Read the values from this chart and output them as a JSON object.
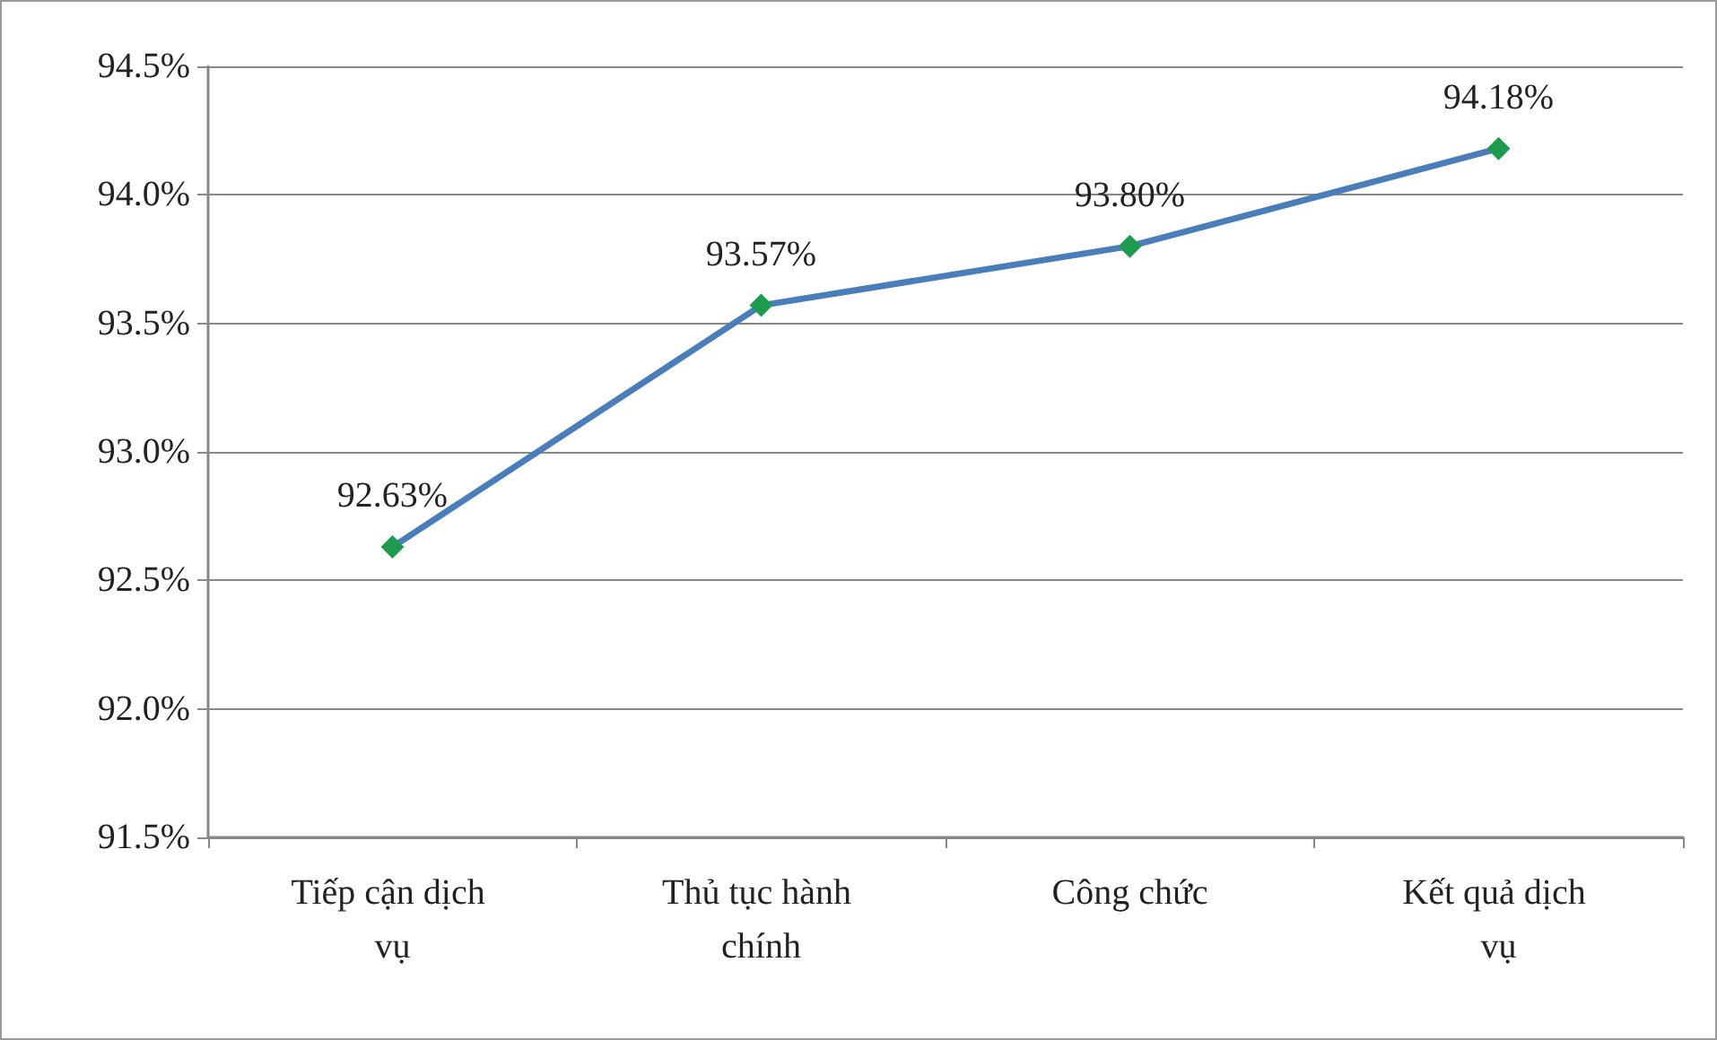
{
  "chart_data": {
    "type": "line",
    "categories": [
      "Tiếp cận dịch vụ",
      "Thủ tục hành chính",
      "Công chức",
      "Kết quả dịch vụ"
    ],
    "series": [
      {
        "color": "#4a7ebb",
        "colors": [
          "#1f9b4f",
          "#1f9b4f",
          "#1f9b4f",
          "#1f9b4f"
        ],
        "values": [
          92.63,
          93.57,
          93.8,
          94.18
        ],
        "value_labels": [
          "92.63%",
          "93.57%",
          "93.80%",
          "94.18%"
        ]
      }
    ],
    "ylim": [
      91.5,
      94.5
    ],
    "yticks": [
      {
        "value": 91.5,
        "label": "91.5%"
      },
      {
        "value": 92,
        "label": "92.0%"
      },
      {
        "value": 92.5,
        "label": "92.5%"
      },
      {
        "value": 93,
        "label": "93.0%"
      },
      {
        "value": 93.5,
        "label": "93.5%"
      },
      {
        "value": 94,
        "label": "94.0%"
      },
      {
        "value": 94.5,
        "label": "94.5%"
      }
    ],
    "grid": "y",
    "marker": "diamond",
    "line_style": "solid"
  }
}
